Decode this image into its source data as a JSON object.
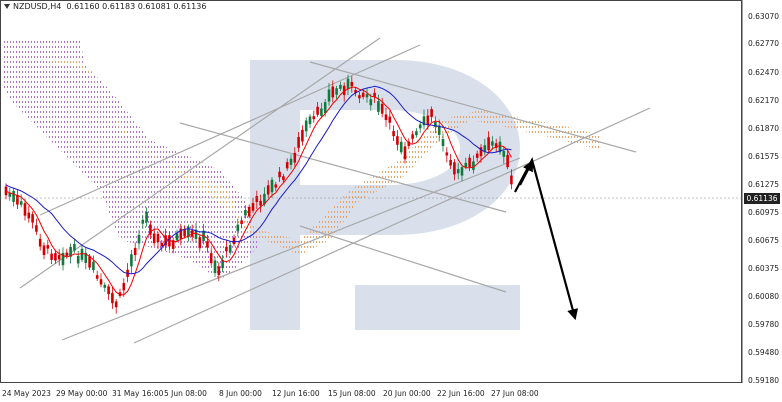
{
  "header": {
    "symbol_timeframe": "NZDUSD,H4",
    "ohlc": "0.61160 0.61183 0.61081 0.61136"
  },
  "price_axis": {
    "ticks": [
      "0.63070",
      "0.62770",
      "0.62470",
      "0.62170",
      "0.61870",
      "0.61575",
      "0.61275",
      "0.60975",
      "0.60675",
      "0.60375",
      "0.60080",
      "0.59780",
      "0.59480",
      "0.59180"
    ],
    "current_price": "0.61136"
  },
  "time_axis": {
    "ticks": [
      "24 May 2023",
      "29 May 00:00",
      "31 May 16:00",
      "5 Jun 08:00",
      "8 Jun 00:00",
      "12 Jun 16:00",
      "15 Jun 08:00",
      "20 Jun 00:00",
      "22 Jun 16:00",
      "27 Jun 08:00"
    ]
  },
  "colors": {
    "bull_candle": "#0e7a3e",
    "bear_candle": "#d40000",
    "tenkan": "#ee0000",
    "kijun": "#1a1acc",
    "cloud_bull": "#f0a060",
    "cloud_bear": "#b070d0",
    "trendline": "#a8a8a8",
    "forecast_arrow": "#000000",
    "watermark": "#b9c6dc"
  }
}
